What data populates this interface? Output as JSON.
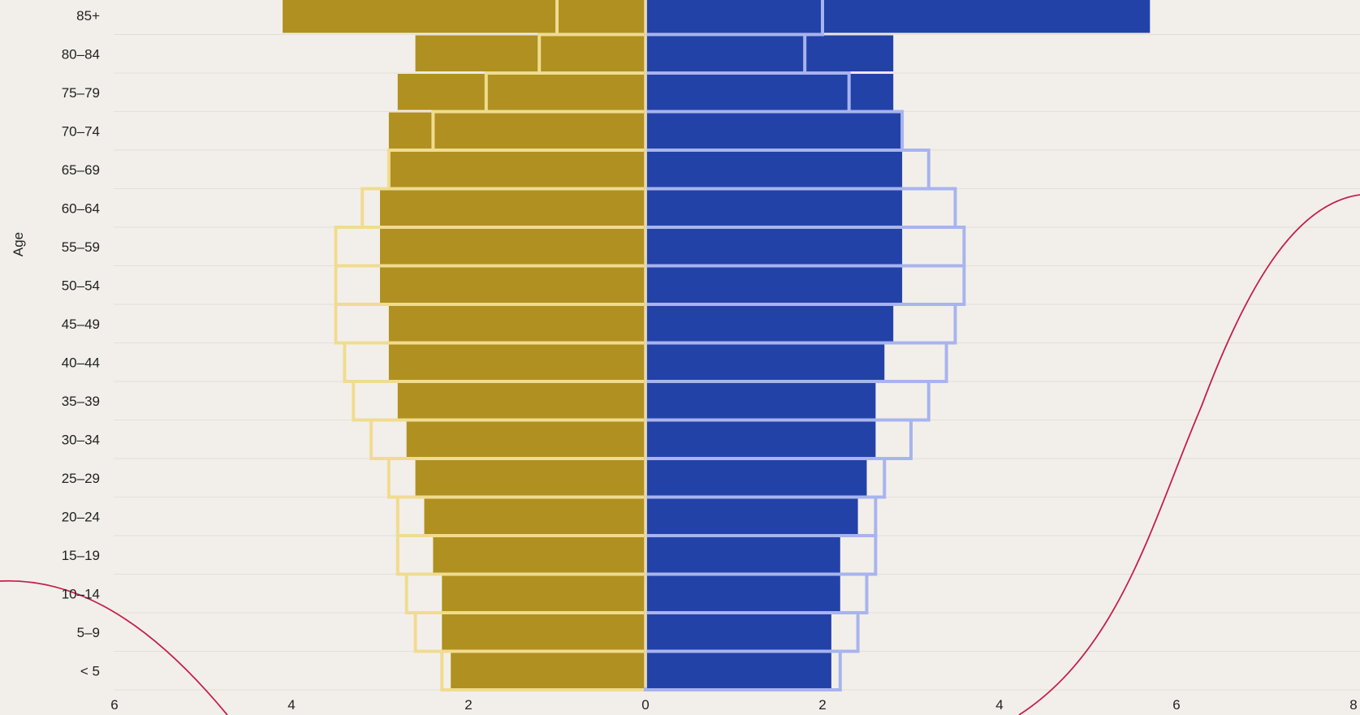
{
  "chart_data": {
    "type": "bar",
    "orientation": "horizontal",
    "subtype": "population-pyramid",
    "ylabel": "Age",
    "xlabel": "",
    "categories": [
      "85+",
      "80–84",
      "75–79",
      "70–74",
      "65–69",
      "60–64",
      "55–59",
      "50–54",
      "45–49",
      "40–44",
      "35–39",
      "30–34",
      "25–29",
      "20–24",
      "15–19",
      "10–14",
      "5–9",
      "< 5"
    ],
    "xlim": [
      -6,
      8
    ],
    "xticks": [
      -6,
      -4,
      -2,
      0,
      2,
      4,
      6,
      8
    ],
    "xtick_labels": [
      "6",
      "4",
      "2",
      "0",
      "2",
      "4",
      "6",
      "8"
    ],
    "grid": "horizontal",
    "legend": "none",
    "series": [
      {
        "side": "left",
        "style": "filled",
        "color": "#b09020",
        "values": [
          4.1,
          2.6,
          2.8,
          2.9,
          2.9,
          3.0,
          3.0,
          3.0,
          2.9,
          2.9,
          2.8,
          2.7,
          2.6,
          2.5,
          2.4,
          2.3,
          2.3,
          2.2
        ]
      },
      {
        "side": "right",
        "style": "filled",
        "color": "#2342a8",
        "values": [
          5.7,
          2.8,
          2.8,
          2.9,
          2.9,
          2.9,
          2.9,
          2.9,
          2.8,
          2.7,
          2.6,
          2.6,
          2.5,
          2.4,
          2.2,
          2.2,
          2.1,
          2.1
        ]
      },
      {
        "side": "left",
        "style": "outline",
        "color": "#f0dc90",
        "values": [
          1.0,
          1.2,
          1.8,
          2.4,
          2.9,
          3.2,
          3.5,
          3.5,
          3.5,
          3.4,
          3.3,
          3.1,
          2.9,
          2.8,
          2.8,
          2.7,
          2.6,
          2.3
        ]
      },
      {
        "side": "right",
        "style": "outline",
        "color": "#a8b4ee",
        "values": [
          2.0,
          1.8,
          2.3,
          2.9,
          3.2,
          3.5,
          3.6,
          3.6,
          3.5,
          3.4,
          3.2,
          3.0,
          2.7,
          2.6,
          2.6,
          2.5,
          2.4,
          2.2
        ]
      }
    ],
    "overlay_curve": {
      "color": "#c4204c"
    }
  }
}
